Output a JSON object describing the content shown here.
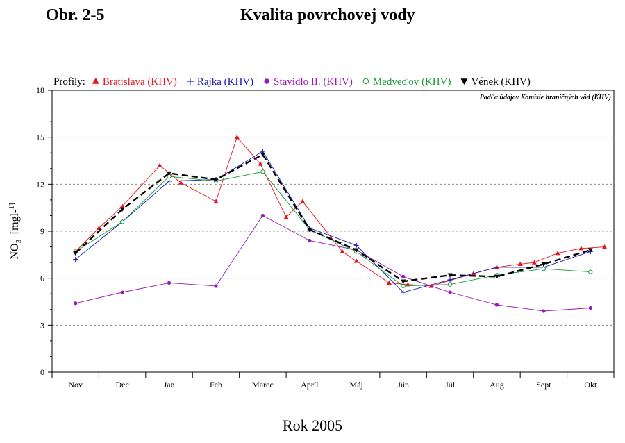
{
  "figure": {
    "number": "Obr. 2-5",
    "title": "Kvalita povrchovej vody",
    "xlabel": "Rok 2005",
    "source_note": "Podľa údajov Komisie hraničných vôd (KHV)"
  },
  "chart_data": {
    "type": "line",
    "legend_prefix": "Profily:",
    "legend_position": "top",
    "ylabel": "NO3- [mgl-1]",
    "ylim": [
      0,
      18
    ],
    "yticks": [
      0,
      3,
      6,
      9,
      12,
      15,
      18
    ],
    "xlim": [
      0,
      12
    ],
    "categories": [
      "Nov",
      "Dec",
      "Jan",
      "Feb",
      "Marec",
      "Apríl",
      "Máj",
      "Jún",
      "Júl",
      "Aug",
      "Sept",
      "Okt"
    ],
    "grid": "horizontal dashed",
    "series": [
      {
        "name": "Bratislava (KHV)",
        "color": "#e8141c",
        "marker": "triangle-up",
        "points": [
          [
            0.5,
            7.7
          ],
          [
            1.0,
            9.2
          ],
          [
            1.5,
            10.6
          ],
          [
            2.3,
            13.2
          ],
          [
            2.75,
            12.1
          ],
          [
            3.5,
            10.9
          ],
          [
            3.95,
            15.0
          ],
          [
            4.45,
            13.3
          ],
          [
            5.0,
            9.9
          ],
          [
            5.35,
            10.9
          ],
          [
            6.2,
            7.7
          ],
          [
            6.5,
            7.1
          ],
          [
            7.2,
            5.7
          ],
          [
            7.6,
            5.6
          ],
          [
            8.1,
            5.5
          ],
          [
            9.0,
            6.3
          ],
          [
            9.5,
            6.7
          ],
          [
            10.0,
            6.9
          ],
          [
            10.3,
            7.0
          ],
          [
            10.8,
            7.6
          ],
          [
            11.3,
            7.9
          ],
          [
            11.8,
            8.0
          ]
        ]
      },
      {
        "name": "Rajka (KHV)",
        "color": "#1a1ab8",
        "marker": "plus",
        "points": [
          [
            0.5,
            7.2
          ],
          [
            1.5,
            9.6
          ],
          [
            2.5,
            12.2
          ],
          [
            3.5,
            12.3
          ],
          [
            4.5,
            14.1
          ],
          [
            5.5,
            9.2
          ],
          [
            6.5,
            8.1
          ],
          [
            7.5,
            5.1
          ],
          [
            8.5,
            5.9
          ],
          [
            9.5,
            6.7
          ],
          [
            10.5,
            6.7
          ],
          [
            11.5,
            7.7
          ]
        ]
      },
      {
        "name": "Stavidlo II. (KHV)",
        "color": "#9a19b5",
        "marker": "circle-filled",
        "points": [
          [
            0.5,
            4.4
          ],
          [
            1.5,
            5.1
          ],
          [
            2.5,
            5.7
          ],
          [
            3.5,
            5.5
          ],
          [
            4.5,
            10.0
          ],
          [
            5.5,
            8.4
          ],
          [
            6.5,
            7.8
          ],
          [
            7.5,
            6.1
          ],
          [
            8.5,
            5.1
          ],
          [
            9.5,
            4.3
          ],
          [
            10.5,
            3.9
          ],
          [
            11.5,
            4.1
          ]
        ]
      },
      {
        "name": "Medveďov (KHV)",
        "color": "#1a9a3a",
        "marker": "circle-open",
        "points": [
          [
            0.5,
            7.7
          ],
          [
            1.5,
            9.6
          ],
          [
            2.5,
            12.5
          ],
          [
            3.5,
            12.2
          ],
          [
            4.5,
            12.8
          ],
          [
            5.5,
            9.1
          ],
          [
            6.5,
            7.7
          ],
          [
            7.5,
            5.5
          ],
          [
            8.5,
            5.6
          ],
          [
            9.5,
            6.2
          ],
          [
            10.5,
            6.6
          ],
          [
            11.5,
            6.4
          ]
        ]
      },
      {
        "name": "Vének (KHV)",
        "color": "#000000",
        "marker": "triangle-down",
        "dashed": true,
        "points": [
          [
            0.5,
            7.6
          ],
          [
            1.5,
            10.4
          ],
          [
            2.5,
            12.7
          ],
          [
            3.5,
            12.3
          ],
          [
            4.5,
            13.9
          ],
          [
            5.5,
            9.1
          ],
          [
            6.5,
            7.8
          ],
          [
            7.5,
            5.8
          ],
          [
            8.5,
            6.2
          ],
          [
            9.5,
            6.1
          ],
          [
            10.5,
            6.9
          ],
          [
            11.5,
            7.8
          ]
        ]
      }
    ]
  }
}
